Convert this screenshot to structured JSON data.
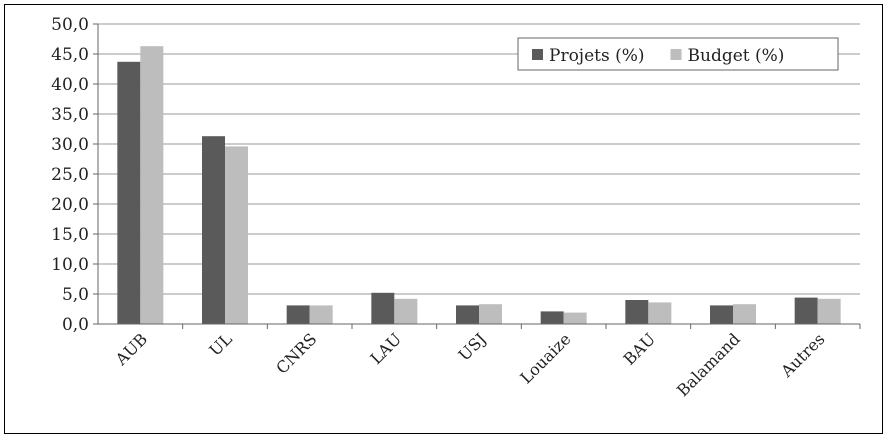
{
  "chart_data": {
    "type": "bar",
    "title": "",
    "xlabel": "",
    "ylabel": "",
    "ylim": [
      0,
      50
    ],
    "ytick_step": 5,
    "ytick_labels": [
      "0,0",
      "5,0",
      "10,0",
      "15,0",
      "20,0",
      "25,0",
      "30,0",
      "35,0",
      "40,0",
      "45,0",
      "50,0"
    ],
    "grid": true,
    "legend_position": "top-right",
    "categories": [
      "AUB",
      "UL",
      "CNRS",
      "LAU",
      "USJ",
      "Louaize",
      "BAU",
      "Balamand",
      "Autres"
    ],
    "series": [
      {
        "name": "Projets (%)",
        "color": "#5a5a5a",
        "values": [
          43.7,
          31.3,
          3.1,
          5.2,
          3.1,
          2.1,
          4.0,
          3.1,
          4.4
        ]
      },
      {
        "name": "Budget (%)",
        "color": "#bdbdbd",
        "values": [
          46.3,
          29.6,
          3.1,
          4.2,
          3.3,
          1.9,
          3.6,
          3.3,
          4.2
        ]
      }
    ]
  }
}
